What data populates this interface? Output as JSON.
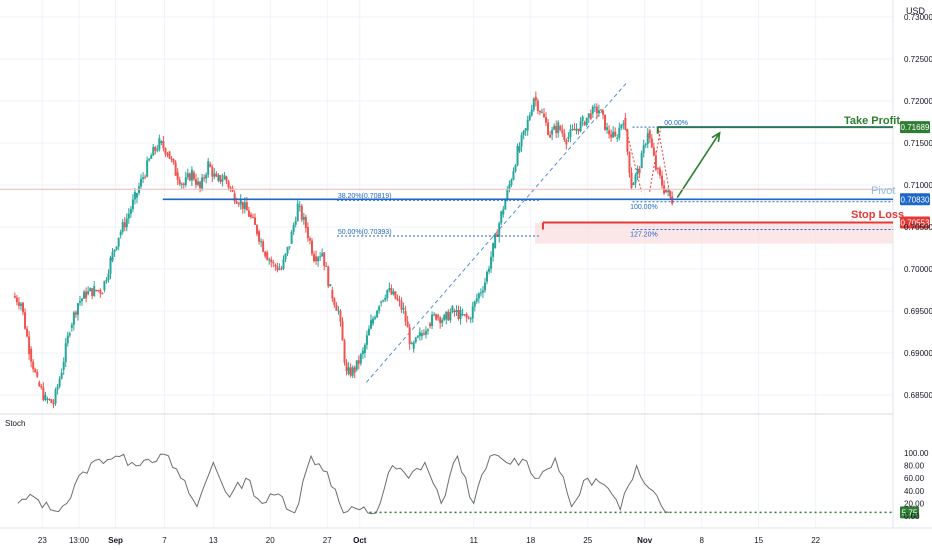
{
  "currency_label": "USD",
  "price_axis": {
    "ticks": [
      "0.73000",
      "0.72500",
      "0.72000",
      "0.71500",
      "0.71000",
      "0.70500",
      "0.70000",
      "0.69500",
      "0.69000",
      "0.68500"
    ],
    "range": [
      0.6835,
      0.731
    ]
  },
  "time_axis": {
    "labels": [
      {
        "text": "23",
        "day": 3
      },
      {
        "text": "13:00",
        "day": 7.5
      },
      {
        "text": "Sep",
        "day": 12
      },
      {
        "text": "7",
        "day": 18
      },
      {
        "text": "13",
        "day": 24
      },
      {
        "text": "20",
        "day": 31
      },
      {
        "text": "27",
        "day": 38
      },
      {
        "text": "Oct",
        "day": 42
      },
      {
        "text": "11",
        "day": 56
      },
      {
        "text": "18",
        "day": 63
      },
      {
        "text": "25",
        "day": 70
      },
      {
        "text": "Nov",
        "day": 77
      },
      {
        "text": "8",
        "day": 84
      },
      {
        "text": "15",
        "day": 91
      },
      {
        "text": "22",
        "day": 98
      }
    ],
    "range": [
      -2.2,
      107.5
    ]
  },
  "annotations": {
    "take_profit": {
      "label": "Take Profit",
      "value": 0.71689,
      "badge": "0.71689",
      "color": "#2e7d32"
    },
    "pivot": {
      "label": "Pivot",
      "value": 0.7083,
      "badge": "0.70830",
      "color": "#1e66c9"
    },
    "stop_loss": {
      "label": "Stop Loss",
      "value": 0.70553,
      "badge": "0.70553",
      "color": "#e53935"
    },
    "current_price": {
      "value": 0.7095,
      "color": "#f3b7b7"
    },
    "fib_left": [
      {
        "label": "38.20%(0.70819)",
        "value": 0.70819
      },
      {
        "label": "50.00%(0.70393)",
        "value": 0.70393
      }
    ],
    "fib_right": [
      {
        "label": "00.00%",
        "value": 0.71689
      },
      {
        "label": "100.00%",
        "value": 0.708
      },
      {
        "label": "127.20%",
        "value": 0.7047
      }
    ]
  },
  "stoch": {
    "label": "Stoch",
    "ticks": [
      "100.00",
      "80.00",
      "60.00",
      "40.00",
      "20.00",
      "0.00"
    ],
    "range": [
      -8,
      108
    ],
    "last_value": "5.75",
    "last_value_num": 5.75,
    "level_color": "#2e7d32"
  },
  "chart_data": {
    "type": "line",
    "title": "",
    "series": [
      {
        "type": "candlestick",
        "x": [
          0,
          1,
          2,
          3,
          4,
          5,
          6,
          7,
          8,
          9,
          10,
          11,
          12,
          13,
          14,
          15,
          16,
          17,
          18,
          19,
          20,
          21,
          22,
          23,
          24,
          25,
          26,
          27,
          28,
          29,
          30,
          31,
          32,
          33,
          34,
          35,
          36,
          37,
          38,
          39,
          40,
          41,
          42,
          43,
          44,
          45,
          46,
          47,
          48,
          49,
          50,
          51,
          52,
          53,
          54,
          55,
          56,
          57,
          58,
          59,
          60,
          61,
          62,
          63,
          64,
          65,
          66,
          67,
          68,
          69,
          70,
          71,
          72,
          73,
          74,
          75,
          76,
          77,
          78,
          79,
          80
        ],
        "close": [
          0.696,
          0.6905,
          0.6865,
          0.6845,
          0.684,
          0.688,
          0.693,
          0.696,
          0.697,
          0.6975,
          0.6975,
          0.701,
          0.704,
          0.706,
          0.7085,
          0.711,
          0.7135,
          0.715,
          0.714,
          0.7115,
          0.71,
          0.7115,
          0.7095,
          0.7125,
          0.7105,
          0.711,
          0.709,
          0.708,
          0.7065,
          0.7045,
          0.702,
          0.7005,
          0.7,
          0.703,
          0.7075,
          0.705,
          0.7015,
          0.702,
          0.6975,
          0.695,
          0.6875,
          0.688,
          0.69,
          0.6935,
          0.696,
          0.6975,
          0.6965,
          0.695,
          0.6905,
          0.692,
          0.6935,
          0.6945,
          0.694,
          0.695,
          0.6945,
          0.694,
          0.6965,
          0.6985,
          0.7025,
          0.7065,
          0.71,
          0.714,
          0.7165,
          0.7205,
          0.7185,
          0.716,
          0.717,
          0.7155,
          0.7165,
          0.7175,
          0.7185,
          0.719,
          0.7165,
          0.7155,
          0.718,
          0.71,
          0.712,
          0.7165,
          0.712,
          0.7095,
          0.7082
        ],
        "note": "approximate daily closes read from the price chart"
      },
      {
        "name": "Stoch",
        "type": "line",
        "x": [
          0,
          2,
          4,
          6,
          8,
          10,
          12,
          14,
          16,
          18,
          20,
          22,
          24,
          26,
          28,
          30,
          32,
          34,
          36,
          38,
          40,
          42,
          44,
          46,
          48,
          50,
          52,
          54,
          56,
          58,
          60,
          62,
          64,
          66,
          68,
          70,
          72,
          74,
          76,
          78,
          80
        ],
        "values": [
          20,
          30,
          10,
          20,
          70,
          90,
          95,
          85,
          90,
          98,
          60,
          15,
          85,
          30,
          60,
          20,
          35,
          5,
          95,
          70,
          5,
          10,
          5,
          80,
          60,
          85,
          20,
          95,
          20,
          95,
          85,
          90,
          60,
          92,
          15,
          60,
          50,
          10,
          80,
          40,
          5.75
        ]
      }
    ]
  }
}
